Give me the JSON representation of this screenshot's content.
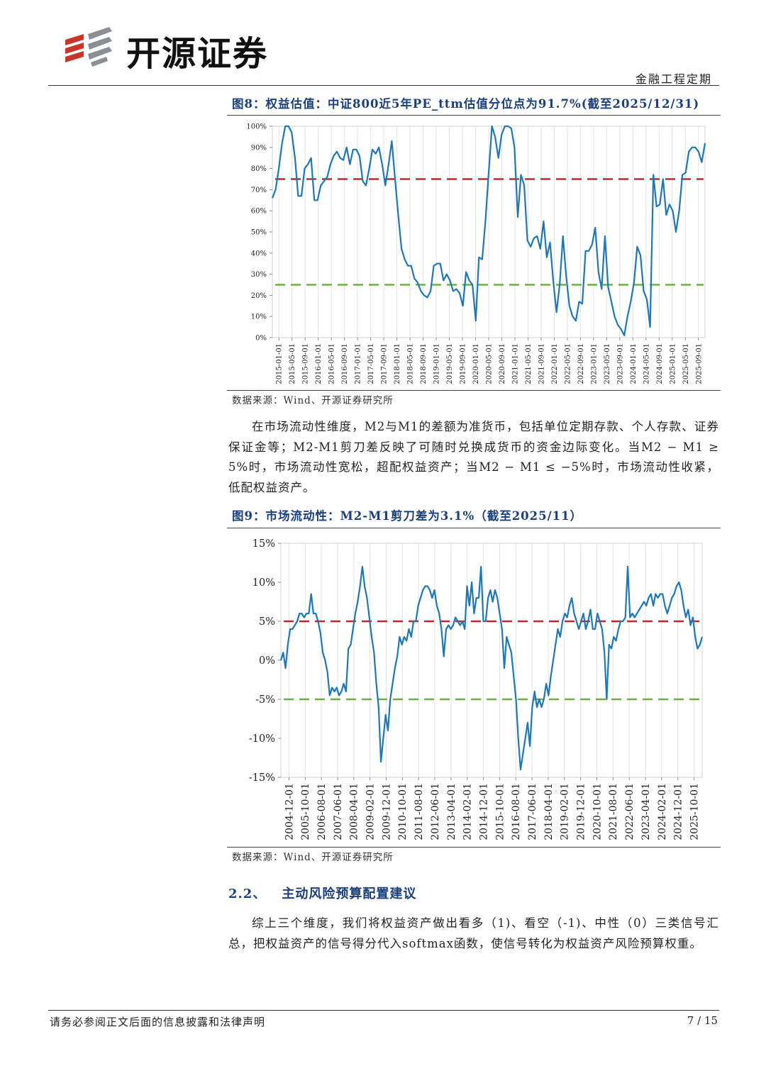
{
  "header": {
    "company": "开源证券",
    "report_type": "金融工程定期",
    "brand_color": "#c8362b"
  },
  "figure8": {
    "title": "图8：权益估值：中证800近5年PE_ttm估值分位点为91.7%(截至2025/12/31)",
    "source": "数据来源：Wind、开源证券研究所"
  },
  "paragraph1": "在市场流动性维度，M2与M1的差额为准货币，包括单位定期存款、个人存款、证券保证金等；M2-M1剪刀差反映了可随时兑换成货币的资金边际变化。当M2 − M1 ≥ 5%时，市场流动性宽松，超配权益资产；当M2 − M1 ≤ −5%时，市场流动性收紧，低配权益资产。",
  "figure9": {
    "title": "图9：市场流动性：M2-M1剪刀差为3.1%（截至2025/11）",
    "source": "数据来源：Wind、开源证券研究所"
  },
  "section": {
    "number": "2.2、",
    "title": "主动风险预算配置建议"
  },
  "paragraph2": "综上三个维度，我们将权益资产做出看多（1)、看空（-1)、中性（0）三类信号汇总，把权益资产的信号得分代入softmax函数，使信号转化为权益资产风险预算权重。",
  "footer": {
    "disclaimer": "请务必参阅正文后面的信息披露和法律声明",
    "page": "7 / 15"
  },
  "chart_data": [
    {
      "type": "line",
      "title": "",
      "ylim": [
        0,
        100
      ],
      "y_ticks": [
        "0%",
        "10%",
        "20%",
        "30%",
        "40%",
        "50%",
        "60%",
        "70%",
        "80%",
        "90%",
        "100%"
      ],
      "x_ticks": [
        "2015-01-01",
        "2015-05-01",
        "2015-09-01",
        "2016-01-01",
        "2016-05-01",
        "2016-09-01",
        "2017-01-01",
        "2017-05-01",
        "2017-09-01",
        "2018-01-01",
        "2018-05-01",
        "2018-09-01",
        "2019-01-01",
        "2019-05-01",
        "2019-09-01",
        "2020-01-01",
        "2020-05-01",
        "2020-09-01",
        "2021-01-01",
        "2021-05-01",
        "2021-09-01",
        "2022-01-01",
        "2022-05-01",
        "2022-09-01",
        "2023-01-01",
        "2023-05-01",
        "2023-09-01",
        "2024-01-01",
        "2024-05-01",
        "2024-09-01",
        "2025-01-01",
        "2025-05-01",
        "2025-09-01"
      ],
      "grid": "vertical",
      "line_color": "#1f77b4",
      "thresholds": [
        {
          "value": 75,
          "color": "#c0282d"
        },
        {
          "value": 25,
          "color": "#70ad47"
        }
      ],
      "series": [
        {
          "values": [
            66,
            70,
            80,
            92,
            100,
            100,
            97,
            85,
            67,
            67,
            80,
            82,
            85,
            65,
            65,
            72,
            74,
            76,
            82,
            86,
            88,
            85,
            84,
            90,
            82,
            89,
            89,
            86,
            74,
            72,
            80,
            89,
            87,
            90,
            82,
            72,
            82,
            93,
            75,
            58,
            42,
            37,
            34,
            34,
            28,
            26,
            22,
            20,
            19,
            22,
            34,
            35,
            35,
            27,
            30,
            27,
            22,
            23,
            21,
            15,
            31,
            27,
            25,
            8,
            38,
            37,
            55,
            78,
            100,
            95,
            85,
            96,
            100,
            100,
            99,
            90,
            57,
            77,
            72,
            46,
            43,
            47,
            48,
            42,
            55,
            38,
            45,
            27,
            12,
            25,
            48,
            29,
            15,
            10,
            8,
            17,
            16,
            41,
            41,
            44,
            52,
            31,
            23,
            48,
            24,
            17,
            10,
            6,
            4,
            1,
            10,
            17,
            26,
            43,
            39,
            22,
            18,
            5,
            77,
            62,
            63,
            75,
            58,
            63,
            60,
            50,
            60,
            77,
            78,
            88,
            90,
            90,
            88,
            83,
            92
          ]
        }
      ]
    },
    {
      "type": "line",
      "title": "",
      "ylim": [
        -15,
        15
      ],
      "y_ticks": [
        "-15%",
        "-10%",
        "-5%",
        "0%",
        "5%",
        "10%",
        "15%"
      ],
      "x_ticks": [
        "2004-12-01",
        "2005-10-01",
        "2006-08-01",
        "2007-06-01",
        "2008-04-01",
        "2009-02-01",
        "2009-12-01",
        "2010-10-01",
        "2011-08-01",
        "2012-06-01",
        "2013-04-01",
        "2014-02-01",
        "2014-12-01",
        "2015-10-01",
        "2016-08-01",
        "2017-06-01",
        "2018-04-01",
        "2019-02-01",
        "2019-12-01",
        "2020-10-01",
        "2021-08-01",
        "2022-06-01",
        "2023-04-01",
        "2024-02-01",
        "2024-12-01",
        "2025-10-01"
      ],
      "grid": "vertical",
      "line_color": "#1f77b4",
      "thresholds": [
        {
          "value": 5,
          "color": "#c0282d"
        },
        {
          "value": -5,
          "color": "#70ad47"
        }
      ],
      "series": [
        {
          "values": [
            0,
            1,
            -1,
            2,
            4,
            4,
            4.5,
            5,
            6,
            6,
            5.5,
            6,
            6,
            8.5,
            6,
            6,
            5,
            3.5,
            1,
            0,
            -1.5,
            -4.5,
            -3.5,
            -4,
            -3.5,
            -4.5,
            -4,
            -3,
            -4,
            1.5,
            2,
            4,
            6,
            7.5,
            9.5,
            12,
            9.5,
            8,
            5.5,
            3,
            1,
            -3,
            -6,
            -13,
            -10,
            -7,
            -9,
            -5,
            -3,
            -1,
            0.5,
            3,
            2,
            3,
            2.5,
            4,
            3,
            5,
            5,
            7,
            8,
            9,
            9.5,
            9.5,
            9,
            8,
            9,
            7,
            6,
            4,
            0.5,
            4,
            4.5,
            4,
            4.5,
            5.5,
            5,
            4.5,
            5,
            4,
            9.5,
            7,
            10,
            6,
            8,
            8,
            12,
            5,
            5,
            8,
            9,
            7.5,
            9,
            8,
            6,
            4,
            -1,
            3,
            2,
            1,
            -2,
            -5,
            -10,
            -14,
            -12,
            -10,
            -8,
            -11,
            -6,
            -4,
            -6,
            -5,
            -6,
            -5,
            -3,
            -4.5,
            -2,
            0,
            2,
            4,
            3,
            5,
            6,
            5.5,
            7,
            8,
            6,
            5,
            4,
            5,
            6,
            4,
            5,
            6.5,
            4,
            4,
            6,
            5,
            4,
            1,
            -5,
            2,
            1.5,
            3,
            2.5,
            4,
            5,
            5,
            5.5,
            12,
            5.5,
            6,
            5.5,
            6,
            6.5,
            7,
            7.5,
            7,
            8,
            8.5,
            7,
            8.5,
            8,
            8.5,
            8.5,
            7,
            6,
            7,
            8,
            8.5,
            9.5,
            10,
            9,
            7,
            5.5,
            6.5,
            4.5,
            5.5,
            3,
            1.5,
            2,
            3
          ]
        }
      ]
    }
  ]
}
